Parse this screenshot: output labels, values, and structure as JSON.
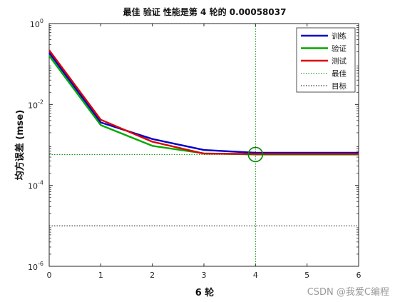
{
  "chart_data": {
    "type": "line",
    "title": "最佳 验证 性能是第 4 轮的 0.00058037",
    "xlabel": "6 轮",
    "ylabel": "均方误差 (mse)",
    "xlim": [
      0,
      6
    ],
    "ylim": [
      1e-06,
      1
    ],
    "yscale": "log",
    "x_ticks": [
      0,
      1,
      2,
      3,
      4,
      5,
      6
    ],
    "y_ticks": [
      {
        "value": 1,
        "base": "10",
        "exp": "0"
      },
      {
        "value": 0.01,
        "base": "10",
        "exp": "-2"
      },
      {
        "value": 0.0001,
        "base": "10",
        "exp": "-4"
      },
      {
        "value": 1e-06,
        "base": "10",
        "exp": "-6"
      }
    ],
    "series": [
      {
        "name": "训练",
        "color": "#0000cc",
        "x": [
          0,
          1,
          2,
          3,
          4,
          5,
          6
        ],
        "values": [
          0.19,
          0.0036,
          0.0014,
          0.00075,
          0.00064,
          0.00064,
          0.00064
        ]
      },
      {
        "name": "验证",
        "color": "#00aa00",
        "x": [
          0,
          1,
          2,
          3,
          4,
          5,
          6
        ],
        "values": [
          0.16,
          0.0031,
          0.00095,
          0.00062,
          0.00058,
          0.00058,
          0.00058
        ]
      },
      {
        "name": "测试",
        "color": "#dd0000",
        "x": [
          0,
          1,
          2,
          3,
          4,
          5,
          6
        ],
        "values": [
          0.22,
          0.0042,
          0.0012,
          0.00061,
          0.0006,
          0.0006,
          0.0006
        ]
      }
    ],
    "best": {
      "name": "最佳",
      "epoch": 4,
      "value": 0.00058037,
      "color": "#008800"
    },
    "goal": {
      "name": "目标",
      "value": 1e-05,
      "color": "#000000"
    },
    "legend_position": "top-right",
    "grid": false
  },
  "watermark": "CSDN @我爱C编程"
}
